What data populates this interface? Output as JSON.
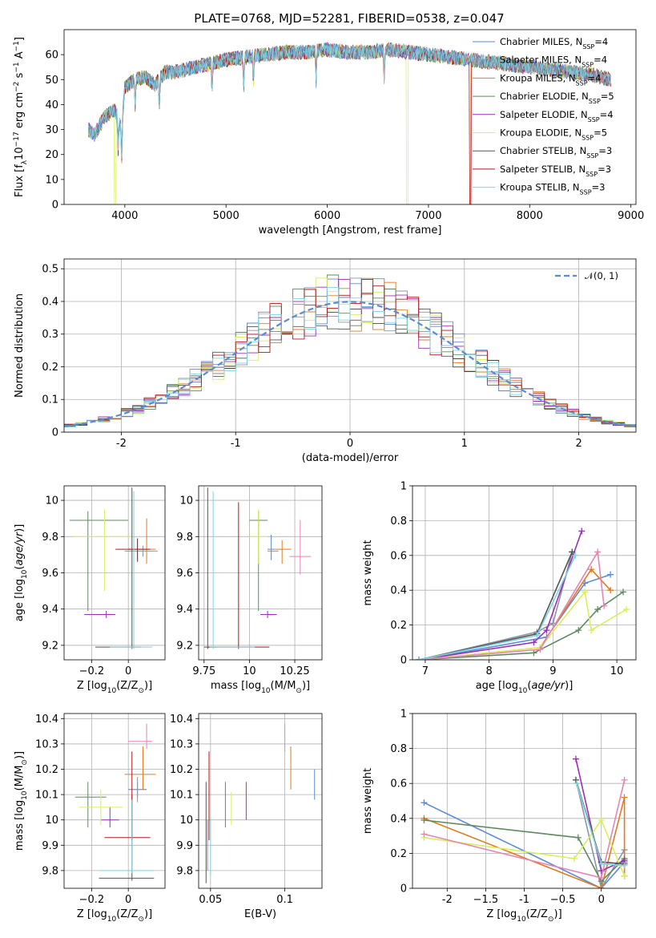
{
  "figure_title": "PLATE=0768, MJD=52281, FIBERID=0538, z=0.047",
  "models": [
    {
      "name": "Chabrier MILES",
      "n_ssp": 4,
      "color": "#5b8bd6"
    },
    {
      "name": "Salpeter MILES",
      "n_ssp": 4,
      "color": "#8b95a4"
    },
    {
      "name": "Kroupa MILES",
      "n_ssp": 4,
      "color": "#e07b20"
    },
    {
      "name": "Chabrier ELODIE",
      "n_ssp": 5,
      "color": "#5f8a60"
    },
    {
      "name": "Salpeter ELODIE",
      "n_ssp": 4,
      "color": "#9b2fb5"
    },
    {
      "name": "Kroupa ELODIE",
      "n_ssp": 5,
      "color": "#d8ef5a"
    },
    {
      "name": "Chabrier STELIB",
      "n_ssp": 3,
      "color": "#555555"
    },
    {
      "name": "Salpeter STELIB",
      "n_ssp": 3,
      "color": "#b01818"
    },
    {
      "name": "Kroupa STELIB",
      "n_ssp": 3,
      "color": "#7ed3e4"
    }
  ],
  "legend_text": {
    "nssp_prefix": "N",
    "nssp_sub": "SSP",
    "normal": "𝒩(0, 1)"
  },
  "chart_data": [
    {
      "id": "spectrum",
      "type": "line",
      "title": "PLATE=0768, MJD=52281, FIBERID=0538, z=0.047",
      "xlabel": "wavelength [Angstrom, rest frame]",
      "ylabel": "Flux [f_λ 10^-17 erg cm^-2 s^-1 A^-1]",
      "xlim": [
        3400,
        9050
      ],
      "ylim": [
        0,
        70
      ],
      "xticks": [
        4000,
        5000,
        6000,
        7000,
        8000,
        9000
      ],
      "yticks": [
        0,
        10,
        20,
        30,
        40,
        50,
        60
      ],
      "x": [
        3640,
        3700,
        3800,
        3900,
        3970,
        4000,
        4100,
        4200,
        4300,
        4400,
        4500,
        4600,
        4700,
        4800,
        4900,
        5000,
        5200,
        5400,
        5600,
        5800,
        6000,
        6200,
        6400,
        6600,
        6800,
        7000,
        7200,
        7400,
        7600,
        7800,
        8000,
        8200,
        8400,
        8600,
        8800
      ],
      "y": [
        30,
        28,
        35,
        38,
        30,
        47,
        50,
        51,
        48,
        53,
        53,
        54,
        55,
        56,
        57,
        58,
        59,
        60,
        61,
        61,
        62,
        61,
        61,
        62,
        61,
        60,
        59,
        58,
        57,
        56,
        55,
        54,
        53,
        52,
        50
      ],
      "legend_position": "right",
      "grid": false
    },
    {
      "id": "residual-histogram",
      "type": "step",
      "xlabel": "(data-model)/error",
      "ylabel": "Normed distribution",
      "xlim": [
        -2.5,
        2.5
      ],
      "ylim": [
        0,
        0.53
      ],
      "xticks": [
        -2,
        -1,
        0,
        1,
        2
      ],
      "yticks": [
        0.0,
        0.1,
        0.2,
        0.3,
        0.4,
        0.5
      ],
      "normal_mean": 0,
      "normal_sigma": 1,
      "legend_position": "top-right",
      "grid": true
    },
    {
      "id": "age-vs-Z",
      "type": "errorbar",
      "xlabel": "Z [log10(Z/Z⊙)]",
      "ylabel": "age [log10(age/yr)]",
      "xlim": [
        -0.35,
        0.2
      ],
      "ylim": [
        9.12,
        10.08
      ],
      "xticks": [
        -0.2,
        0.0
      ],
      "yticks": [
        9.2,
        9.4,
        9.6,
        9.8,
        10.0
      ],
      "points": [
        {
          "model": 0,
          "x": 0.05,
          "y": 9.73,
          "xerr": [
            0.05,
            0.05
          ],
          "yerr": [
            0.06,
            0.06
          ]
        },
        {
          "model": 1,
          "x": 0.08,
          "y": 9.72,
          "xerr": [
            0.1,
            0.08
          ],
          "yerr": [
            0.03,
            0.03
          ]
        },
        {
          "model": 2,
          "x": 0.1,
          "y": 9.73,
          "xerr": [
            0.1,
            0.05
          ],
          "yerr": [
            0.08,
            0.17
          ]
        },
        {
          "model": 3,
          "x": -0.22,
          "y": 9.89,
          "xerr": [
            0.1,
            0.22
          ],
          "yerr": [
            0.5,
            0.05
          ]
        },
        {
          "model": 4,
          "x": -0.12,
          "y": 9.37,
          "xerr": [
            0.12,
            0.05
          ],
          "yerr": [
            0.02,
            0.02
          ]
        },
        {
          "model": 5,
          "x": -0.13,
          "y": 9.8,
          "xerr": [
            0.17,
            0.15
          ],
          "yerr": [
            0.3,
            0.15
          ]
        },
        {
          "model": 6,
          "x": 0.02,
          "y": 9.19,
          "xerr": [
            0.2,
            0.05
          ],
          "yerr": [
            0.01,
            0.88
          ]
        },
        {
          "model": 7,
          "x": 0.05,
          "y": 9.73,
          "xerr": [
            0.12,
            0.07
          ],
          "yerr": [
            0.07,
            0.06
          ]
        },
        {
          "model": 8,
          "x": 0.03,
          "y": 9.19,
          "xerr": [
            0.13,
            0.1
          ],
          "yerr": [
            0.01,
            0.86
          ]
        }
      ],
      "grid": true
    },
    {
      "id": "age-vs-mass",
      "type": "errorbar",
      "xlabel": "mass [log10(M/M⊙)]",
      "ylabel": "",
      "xlim": [
        9.72,
        10.4
      ],
      "ylim": [
        9.12,
        10.08
      ],
      "xticks": [
        9.75,
        10.0,
        10.25
      ],
      "yticks": [
        9.2,
        9.4,
        9.6,
        9.8,
        10.0
      ],
      "points": [
        {
          "model": 0,
          "x": 10.12,
          "y": 9.73,
          "xerr": [
            0.02,
            0.02
          ],
          "yerr": [
            0.06,
            0.08
          ]
        },
        {
          "model": 1,
          "x": 10.12,
          "y": 9.72,
          "xerr": [
            0.02,
            0.04
          ],
          "yerr": [
            0.03,
            0.03
          ]
        },
        {
          "model": 2,
          "x": 10.18,
          "y": 9.73,
          "xerr": [
            0.04,
            0.05
          ],
          "yerr": [
            0.08,
            0.05
          ]
        },
        {
          "model": 3,
          "x": 10.05,
          "y": 9.89,
          "xerr": [
            0.05,
            0.05
          ],
          "yerr": [
            0.5,
            0.05
          ]
        },
        {
          "model": 4,
          "x": 10.1,
          "y": 9.37,
          "xerr": [
            0.04,
            0.05
          ],
          "yerr": [
            0.02,
            0.02
          ]
        },
        {
          "model": 5,
          "x": 10.05,
          "y": 9.8,
          "xerr": [
            0.05,
            0.05
          ],
          "yerr": [
            0.15,
            0.15
          ]
        },
        {
          "model": 6,
          "x": 9.77,
          "y": 9.19,
          "xerr": [
            0.02,
            0.05
          ],
          "yerr": [
            0.01,
            0.88
          ]
        },
        {
          "model": 7,
          "x": 9.94,
          "y": 9.19,
          "xerr": [
            0.17,
            0.17
          ],
          "yerr": [
            0.01,
            0.8
          ]
        },
        {
          "model": 8,
          "x": 9.8,
          "y": 9.19,
          "xerr": [
            0.02,
            0.23
          ],
          "yerr": [
            0.01,
            0.86
          ]
        }
      ],
      "extra": [
        {
          "model": 7,
          "x": 10.28,
          "y": 9.69,
          "xerr": [
            0.06,
            0.06
          ],
          "yerr": [
            0.1,
            0.2
          ],
          "color": "#e684b8"
        }
      ],
      "grid": true
    },
    {
      "id": "mass-weight-vs-age",
      "type": "line",
      "xlabel": "age [log10(age/yr)]",
      "ylabel": "mass weight",
      "xlim": [
        6.8,
        10.3
      ],
      "ylim": [
        0,
        1
      ],
      "xticks": [
        7,
        8,
        9,
        10
      ],
      "yticks": [
        0.0,
        0.2,
        0.4,
        0.6,
        0.8,
        1.0
      ],
      "series": [
        {
          "model": 0,
          "x": [
            6.9,
            8.9,
            9.5,
            9.9
          ],
          "y": [
            0.0,
            0.13,
            0.44,
            0.49
          ]
        },
        {
          "model": 1,
          "x": [
            6.9,
            8.75,
            9.0,
            9.3
          ],
          "y": [
            0.0,
            0.16,
            0.21,
            0.62
          ]
        },
        {
          "model": 2,
          "x": [
            6.9,
            8.8,
            9.6,
            9.9
          ],
          "y": [
            0.0,
            0.07,
            0.52,
            0.4
          ]
        },
        {
          "model": 3,
          "x": [
            6.9,
            8.7,
            9.4,
            9.7,
            10.1
          ],
          "y": [
            0.0,
            0.04,
            0.17,
            0.29,
            0.39
          ]
        },
        {
          "model": 4,
          "x": [
            6.9,
            8.7,
            8.9,
            9.45
          ],
          "y": [
            0.0,
            0.1,
            0.17,
            0.74
          ]
        },
        {
          "model": 5,
          "x": [
            6.9,
            8.8,
            9.5,
            9.6,
            10.15
          ],
          "y": [
            0.0,
            0.07,
            0.39,
            0.17,
            0.29
          ]
        },
        {
          "model": 6,
          "x": [
            6.9,
            8.75,
            9.3
          ],
          "y": [
            0.0,
            0.15,
            0.62
          ]
        },
        {
          "model": 7,
          "x": [
            6.9,
            8.8,
            9.7,
            9.8
          ],
          "y": [
            0.0,
            0.06,
            0.62,
            0.31
          ],
          "color": "#e684b8"
        },
        {
          "model": 8,
          "x": [
            6.9,
            8.75,
            9.35
          ],
          "y": [
            0.0,
            0.14,
            0.6
          ]
        }
      ],
      "grid": true
    },
    {
      "id": "mass-vs-Z",
      "type": "errorbar",
      "xlabel": "Z [log10(Z/Z⊙)]",
      "ylabel": "mass [log10(M/M⊙)]",
      "xlim": [
        -0.35,
        0.2
      ],
      "ylim": [
        9.73,
        10.42
      ],
      "xticks": [
        -0.2,
        0.0
      ],
      "yticks": [
        9.8,
        9.9,
        10.0,
        10.1,
        10.2,
        10.3,
        10.4
      ],
      "points": [
        {
          "model": 0,
          "x": 0.05,
          "y": 10.12,
          "xerr": [
            0.05,
            0.05
          ],
          "yerr": [
            0.03,
            0.03
          ]
        },
        {
          "model": 1,
          "x": 0.05,
          "y": 10.12,
          "xerr": [
            0.05,
            0.05
          ],
          "yerr": [
            0.05,
            0.05
          ]
        },
        {
          "model": 2,
          "x": 0.08,
          "y": 10.18,
          "xerr": [
            0.1,
            0.07
          ],
          "yerr": [
            0.06,
            0.11
          ]
        },
        {
          "model": 3,
          "x": -0.22,
          "y": 10.09,
          "xerr": [
            0.07,
            0.1
          ],
          "yerr": [
            0.12,
            0.06
          ]
        },
        {
          "model": 4,
          "x": -0.1,
          "y": 10.0,
          "xerr": [
            0.05,
            0.05
          ],
          "yerr": [
            0.03,
            0.05
          ]
        },
        {
          "model": 5,
          "x": -0.15,
          "y": 10.05,
          "xerr": [
            0.12,
            0.12
          ],
          "yerr": [
            0.07,
            0.07
          ]
        },
        {
          "model": 6,
          "x": 0.02,
          "y": 9.77,
          "xerr": [
            0.18,
            0.12
          ],
          "yerr": [
            0.01,
            0.33
          ]
        },
        {
          "model": 7,
          "x": 0.02,
          "y": 9.93,
          "xerr": [
            0.15,
            0.1
          ],
          "yerr": [
            0.01,
            0.34
          ]
        },
        {
          "model": 8,
          "x": 0.02,
          "y": 9.8,
          "xerr": [
            0.18,
            0.12
          ],
          "yerr": [
            0.01,
            0.28
          ]
        }
      ],
      "extra": [
        {
          "model": 7,
          "x": 0.1,
          "y": 10.31,
          "xerr": [
            0.1,
            0.03
          ],
          "yerr": [
            0.03,
            0.07
          ],
          "color": "#e684b8"
        }
      ],
      "grid": true
    },
    {
      "id": "mass-vs-ebv",
      "type": "errorbar",
      "xlabel": "E(B-V)",
      "ylabel": "",
      "xlim": [
        0.042,
        0.125
      ],
      "ylim": [
        9.73,
        10.42
      ],
      "xticks": [
        0.05,
        0.1
      ],
      "yticks": [
        9.8,
        9.9,
        10.0,
        10.1,
        10.2,
        10.3,
        10.4
      ],
      "points": [
        {
          "model": 0,
          "x": 0.12,
          "y": 10.14,
          "xerr": [
            0,
            0
          ],
          "yerr": [
            0.06,
            0.06
          ]
        },
        {
          "model": 1,
          "x": 0.048,
          "y": 9.9,
          "xerr": [
            0,
            0
          ],
          "yerr": [
            0.1,
            0.1
          ]
        },
        {
          "model": 2,
          "x": 0.104,
          "y": 10.2,
          "xerr": [
            0,
            0
          ],
          "yerr": [
            0.08,
            0.09
          ]
        },
        {
          "model": 3,
          "x": 0.06,
          "y": 10.09,
          "xerr": [
            0,
            0
          ],
          "yerr": [
            0.12,
            0.06
          ]
        },
        {
          "model": 4,
          "x": 0.074,
          "y": 10.07,
          "xerr": [
            0,
            0
          ],
          "yerr": [
            0.07,
            0.08
          ]
        },
        {
          "model": 5,
          "x": 0.064,
          "y": 10.03,
          "xerr": [
            0,
            0
          ],
          "yerr": [
            0.05,
            0.08
          ]
        },
        {
          "model": 6,
          "x": 0.047,
          "y": 9.9,
          "xerr": [
            0,
            0
          ],
          "yerr": [
            0.15,
            0.25
          ]
        },
        {
          "model": 7,
          "x": 0.049,
          "y": 10.1,
          "xerr": [
            0,
            0
          ],
          "yerr": [
            0.18,
            0.17
          ]
        },
        {
          "model": 8,
          "x": 0.05,
          "y": 9.85,
          "xerr": [
            0,
            0
          ],
          "yerr": [
            0.07,
            0.16
          ]
        }
      ],
      "extra": [
        {
          "model": 7,
          "x": 0.1,
          "y": 10.31,
          "xerr": [
            0,
            0
          ],
          "yerr": [
            0.04,
            0.07
          ],
          "color": "#e684b8"
        }
      ],
      "grid": true
    },
    {
      "id": "mass-weight-vs-Z",
      "type": "line",
      "xlabel": "Z [log10(Z/Z⊙)]",
      "ylabel": "mass weight",
      "xlim": [
        -2.45,
        0.45
      ],
      "ylim": [
        0,
        1
      ],
      "xticks": [
        -2.0,
        -1.5,
        -1.0,
        -0.5,
        0.0
      ],
      "yticks": [
        0.0,
        0.2,
        0.4,
        0.6,
        0.8,
        1.0
      ],
      "series": [
        {
          "model": 0,
          "x": [
            -2.3,
            0.0,
            0.3
          ],
          "y": [
            0.49,
            0.0,
            0.15
          ]
        },
        {
          "model": 1,
          "x": [
            -0.33,
            0.0,
            0.3
          ],
          "y": [
            0.62,
            0.0,
            0.22
          ]
        },
        {
          "model": 2,
          "x": [
            -2.3,
            0.0,
            0.3,
            0.3
          ],
          "y": [
            0.4,
            0.0,
            0.52,
            0.07
          ]
        },
        {
          "model": 3,
          "x": [
            -2.3,
            -0.3,
            0.0,
            0.3
          ],
          "y": [
            0.39,
            0.29,
            0.04,
            0.17
          ]
        },
        {
          "model": 4,
          "x": [
            -0.33,
            0.0,
            0.3
          ],
          "y": [
            0.74,
            0.1,
            0.16
          ]
        },
        {
          "model": 5,
          "x": [
            -2.3,
            -0.35,
            0.0,
            0.3
          ],
          "y": [
            0.29,
            0.17,
            0.39,
            0.07
          ]
        },
        {
          "model": 6,
          "x": [
            -0.33,
            0.0,
            0.3
          ],
          "y": [
            0.62,
            0.15,
            0.14
          ]
        },
        {
          "model": 7,
          "x": [
            -2.3,
            0.0,
            0.3
          ],
          "y": [
            0.31,
            0.06,
            0.62
          ],
          "color": "#e684b8"
        },
        {
          "model": 8,
          "x": [
            -0.32,
            0.0,
            0.3
          ],
          "y": [
            0.6,
            0.14,
            0.13
          ]
        }
      ],
      "grid": true
    }
  ]
}
